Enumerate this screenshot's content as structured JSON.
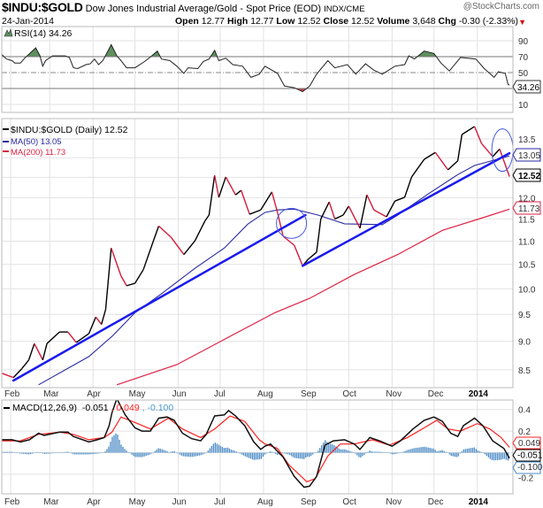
{
  "header": {
    "symbol": "$INDU:$GOLD",
    "description": "Dow Jones Industrial Average/Gold - Spot Price (EOD)",
    "exchange": "INDX/CME",
    "brand": "@StockCharts.com",
    "date": "24-Jan-2014",
    "open_label": "Open",
    "open": "12.77",
    "high_label": "High",
    "high": "12.77",
    "low_label": "Low",
    "low": "12.52",
    "close_label": "Close",
    "close": "12.52",
    "volume_label": "Volume",
    "volume": "3,648",
    "chg_label": "Chg",
    "chg": "-0.30 (-2.33%)",
    "chg_arrow": "▼"
  },
  "colors": {
    "price": "#000000",
    "ma50": "#2a2aa0",
    "ma200": "#dd2244",
    "trend": "#1a1aee",
    "signal": "#ff2020",
    "hist": "#4a8ac4",
    "rsi_up": "#5e8f5e",
    "rsi_down": "#cc4455"
  },
  "chart_data": {
    "type": "line",
    "x_units": "days since 2013-02-01",
    "x_ticks": [
      {
        "label": "Feb",
        "day": 0
      },
      {
        "label": "Mar",
        "day": 28
      },
      {
        "label": "Apr",
        "day": 59
      },
      {
        "label": "May",
        "day": 89
      },
      {
        "label": "Jun",
        "day": 120
      },
      {
        "label": "Jul",
        "day": 150
      },
      {
        "label": "Aug",
        "day": 181
      },
      {
        "label": "Sep",
        "day": 212
      },
      {
        "label": "Oct",
        "day": 242
      },
      {
        "label": "Nov",
        "day": 273
      },
      {
        "label": "Dec",
        "day": 303
      },
      {
        "label": "2014",
        "day": 334,
        "bold": true
      }
    ],
    "rsi": {
      "legend": "RSI(14) 34.26",
      "last_label": "34.26",
      "ylim": [
        0,
        100
      ],
      "tick_labels": [
        "90",
        "70",
        "50",
        "10"
      ],
      "tick_values": [
        90,
        70,
        50,
        10
      ],
      "overbought": 70,
      "oversold": 30,
      "points": [
        [
          -7,
          74
        ],
        [
          -3,
          67
        ],
        [
          1,
          65
        ],
        [
          3,
          62
        ],
        [
          7,
          62
        ],
        [
          10,
          68
        ],
        [
          18,
          81
        ],
        [
          21,
          71
        ],
        [
          23,
          58
        ],
        [
          25,
          65
        ],
        [
          30,
          71
        ],
        [
          39,
          71
        ],
        [
          42,
          69
        ],
        [
          45,
          56
        ],
        [
          48,
          55
        ],
        [
          54,
          60
        ],
        [
          57,
          61
        ],
        [
          60,
          67
        ],
        [
          63,
          60
        ],
        [
          66,
          65
        ],
        [
          72,
          85
        ],
        [
          76,
          71
        ],
        [
          79,
          65
        ],
        [
          83,
          56
        ],
        [
          89,
          56
        ],
        [
          96,
          64
        ],
        [
          101,
          71
        ],
        [
          105,
          77
        ],
        [
          108,
          67
        ],
        [
          114,
          65
        ],
        [
          119,
          58
        ],
        [
          124,
          49
        ],
        [
          127,
          56
        ],
        [
          134,
          55
        ],
        [
          138,
          64
        ],
        [
          142,
          67
        ],
        [
          146,
          78
        ],
        [
          149,
          65
        ],
        [
          154,
          68
        ],
        [
          159,
          60
        ],
        [
          166,
          58
        ],
        [
          172,
          44
        ],
        [
          178,
          48
        ],
        [
          182,
          58
        ],
        [
          191,
          49
        ],
        [
          196,
          33
        ],
        [
          203,
          31
        ],
        [
          209,
          26
        ],
        [
          214,
          33
        ],
        [
          219,
          48
        ],
        [
          227,
          65
        ],
        [
          232,
          56
        ],
        [
          241,
          60
        ],
        [
          247,
          48
        ],
        [
          254,
          61
        ],
        [
          260,
          53
        ],
        [
          266,
          48
        ],
        [
          275,
          58
        ],
        [
          282,
          60
        ],
        [
          285,
          71
        ],
        [
          289,
          67
        ],
        [
          296,
          77
        ],
        [
          303,
          74
        ],
        [
          308,
          62
        ],
        [
          314,
          52
        ],
        [
          322,
          69
        ],
        [
          333,
          67
        ],
        [
          339,
          55
        ],
        [
          346,
          44
        ],
        [
          349,
          51
        ],
        [
          354,
          49
        ],
        [
          356,
          35
        ],
        [
          357,
          34.26
        ]
      ]
    },
    "price": {
      "legend_price": "$INDU:$GOLD (Daily) 12.52",
      "legend_ma50": "MA(50) 13.05",
      "legend_ma200": "MA(200) 11.73",
      "last_price_label": "12.52",
      "last_ma50_label": "13.05",
      "last_ma200_label": "11.73",
      "scale": "log",
      "ylim": [
        8.3,
        13.9
      ],
      "grid_values": [
        8.5,
        9,
        9.5,
        10,
        10.5,
        11,
        11.5,
        12,
        12.5,
        13,
        13.5
      ],
      "tick_labels": [
        "8.5",
        "9.0",
        "9.5",
        "10.0",
        "10.5",
        "11.0",
        "11.5",
        "12.0",
        "13.5"
      ],
      "tick_values": [
        8.5,
        9,
        9.5,
        10,
        10.5,
        11,
        11.5,
        12,
        13.5
      ],
      "close": [
        [
          -6,
          8.44
        ],
        [
          2,
          8.37
        ],
        [
          8,
          8.52
        ],
        [
          13,
          8.67
        ],
        [
          17,
          8.96
        ],
        [
          23,
          8.67
        ],
        [
          26,
          8.96
        ],
        [
          35,
          9.17
        ],
        [
          41,
          9.17
        ],
        [
          47,
          8.98
        ],
        [
          56,
          9.14
        ],
        [
          61,
          9.45
        ],
        [
          65,
          9.31
        ],
        [
          68,
          9.59
        ],
        [
          72,
          10.85
        ],
        [
          79,
          10.26
        ],
        [
          83,
          10.06
        ],
        [
          89,
          10.11
        ],
        [
          95,
          10.39
        ],
        [
          102,
          10.99
        ],
        [
          106,
          11.34
        ],
        [
          115,
          11.08
        ],
        [
          124,
          10.71
        ],
        [
          132,
          11.01
        ],
        [
          139,
          11.45
        ],
        [
          142,
          11.59
        ],
        [
          146,
          12.55
        ],
        [
          149,
          12.01
        ],
        [
          154,
          12.51
        ],
        [
          161,
          12.07
        ],
        [
          165,
          12.18
        ],
        [
          171,
          11.61
        ],
        [
          179,
          11.71
        ],
        [
          187,
          12.14
        ],
        [
          191,
          11.65
        ],
        [
          195,
          11.11
        ],
        [
          203,
          10.91
        ],
        [
          209,
          10.47
        ],
        [
          213,
          10.61
        ],
        [
          219,
          10.76
        ],
        [
          222,
          11.5
        ],
        [
          228,
          11.9
        ],
        [
          232,
          11.5
        ],
        [
          238,
          11.59
        ],
        [
          242,
          11.8
        ],
        [
          250,
          11.29
        ],
        [
          255,
          12.07
        ],
        [
          260,
          11.71
        ],
        [
          269,
          11.55
        ],
        [
          275,
          11.92
        ],
        [
          282,
          12.01
        ],
        [
          287,
          12.51
        ],
        [
          296,
          12.96
        ],
        [
          304,
          13.14
        ],
        [
          313,
          12.69
        ],
        [
          320,
          12.92
        ],
        [
          323,
          13.62
        ],
        [
          332,
          13.84
        ],
        [
          337,
          13.38
        ],
        [
          345,
          13.03
        ],
        [
          350,
          13.23
        ],
        [
          357,
          12.52
        ]
      ],
      "ma50": [
        [
          20,
          8.25
        ],
        [
          56,
          8.73
        ],
        [
          73,
          9.1
        ],
        [
          89,
          9.53
        ],
        [
          108,
          9.9
        ],
        [
          132,
          10.42
        ],
        [
          153,
          10.85
        ],
        [
          170,
          11.39
        ],
        [
          182,
          11.65
        ],
        [
          191,
          11.71
        ],
        [
          203,
          11.73
        ],
        [
          220,
          11.59
        ],
        [
          239,
          11.39
        ],
        [
          266,
          11.37
        ],
        [
          277,
          11.59
        ],
        [
          298,
          12.07
        ],
        [
          320,
          12.57
        ],
        [
          332,
          12.8
        ],
        [
          357,
          13.05
        ]
      ],
      "ma200": [
        [
          76,
          8.25
        ],
        [
          119,
          8.59
        ],
        [
          151,
          9.01
        ],
        [
          189,
          9.53
        ],
        [
          214,
          9.81
        ],
        [
          246,
          10.29
        ],
        [
          277,
          10.71
        ],
        [
          309,
          11.24
        ],
        [
          340,
          11.55
        ],
        [
          357,
          11.73
        ]
      ],
      "annotations": {
        "trendlines": [
          [
            [
              2,
              8.32
            ],
            [
              211,
              11.59
            ]
          ],
          [
            [
              209,
              10.47
            ],
            [
              357,
              13.12
            ]
          ]
        ],
        "circles": [
          {
            "day": 201,
            "value": 11.4
          },
          {
            "day": 352,
            "value": 13.2
          }
        ]
      }
    },
    "macd": {
      "legend_name": "MACD(12,26,9)",
      "legend_macd": "-0.051",
      "legend_signal": ", 0.049",
      "legend_hist": ", -0.100",
      "last_signal_label": "0.049",
      "last_macd_label": "-0.051",
      "last_hist_label": "-0.100",
      "ylim": [
        -0.38,
        0.48
      ],
      "grid_values": [
        0.4,
        0.2,
        0,
        -0.2
      ],
      "tick_labels": [
        "0.4",
        "0.2",
        "-0.2"
      ],
      "tick_values": [
        0.4,
        0.2,
        -0.2
      ],
      "macd": [
        [
          -6.5,
          0.12
        ],
        [
          1,
          0.12
        ],
        [
          7,
          0.1
        ],
        [
          13.5,
          0.12
        ],
        [
          20,
          0.18
        ],
        [
          24,
          0.16
        ],
        [
          35,
          0.19
        ],
        [
          41,
          0.19
        ],
        [
          45,
          0.15
        ],
        [
          56,
          0.1
        ],
        [
          62,
          0.12
        ],
        [
          67,
          0.14
        ],
        [
          70.5,
          0.25
        ],
        [
          72.5,
          0.37
        ],
        [
          76,
          0.5
        ],
        [
          82,
          0.35
        ],
        [
          89,
          0.23
        ],
        [
          94,
          0.2
        ],
        [
          100,
          0.2
        ],
        [
          106,
          0.32
        ],
        [
          112,
          0.33
        ],
        [
          117,
          0.3
        ],
        [
          123,
          0.18
        ],
        [
          129.5,
          0.13
        ],
        [
          136,
          0.11
        ],
        [
          140,
          0.17
        ],
        [
          146,
          0.34
        ],
        [
          153,
          0.35
        ],
        [
          156,
          0.39
        ],
        [
          161,
          0.34
        ],
        [
          167.5,
          0.25
        ],
        [
          174,
          0.1
        ],
        [
          179,
          0.03
        ],
        [
          182,
          0.06
        ],
        [
          186,
          0.08
        ],
        [
          195,
          -0.04
        ],
        [
          203,
          -0.22
        ],
        [
          210,
          -0.32
        ],
        [
          214,
          -0.31
        ],
        [
          219,
          -0.22
        ],
        [
          225,
          0.07
        ],
        [
          231,
          0.11
        ],
        [
          239,
          0.12
        ],
        [
          246,
          0.08
        ],
        [
          250,
          0.03
        ],
        [
          257,
          0.14
        ],
        [
          264,
          0.11
        ],
        [
          273,
          0.06
        ],
        [
          279,
          0.11
        ],
        [
          288,
          0.22
        ],
        [
          296,
          0.3
        ],
        [
          303,
          0.33
        ],
        [
          309,
          0.29
        ],
        [
          315,
          0.18
        ],
        [
          320,
          0.15
        ],
        [
          324,
          0.25
        ],
        [
          332,
          0.32
        ],
        [
          338,
          0.25
        ],
        [
          345,
          0.11
        ],
        [
          353,
          0.04
        ],
        [
          357,
          -0.051
        ]
      ],
      "signal": [
        [
          -6.5,
          0.11
        ],
        [
          7,
          0.11
        ],
        [
          20,
          0.17
        ],
        [
          35,
          0.19
        ],
        [
          45,
          0.17
        ],
        [
          56,
          0.12
        ],
        [
          67,
          0.14
        ],
        [
          72.5,
          0.19
        ],
        [
          79,
          0.33
        ],
        [
          87,
          0.29
        ],
        [
          100,
          0.22
        ],
        [
          113,
          0.32
        ],
        [
          123,
          0.22
        ],
        [
          136,
          0.14
        ],
        [
          146,
          0.22
        ],
        [
          157,
          0.34
        ],
        [
          167.5,
          0.29
        ],
        [
          178,
          0.12
        ],
        [
          182,
          0.08
        ],
        [
          191,
          0.04
        ],
        [
          199,
          -0.11
        ],
        [
          212,
          -0.27
        ],
        [
          218,
          -0.24
        ],
        [
          227,
          -0.03
        ],
        [
          236,
          0.08
        ],
        [
          246,
          0.08
        ],
        [
          259,
          0.12
        ],
        [
          271,
          0.07
        ],
        [
          284,
          0.14
        ],
        [
          296,
          0.23
        ],
        [
          305,
          0.3
        ],
        [
          313,
          0.22
        ],
        [
          322,
          0.2
        ],
        [
          334,
          0.27
        ],
        [
          343,
          0.22
        ],
        [
          351,
          0.14
        ],
        [
          357,
          0.049
        ]
      ]
    }
  }
}
